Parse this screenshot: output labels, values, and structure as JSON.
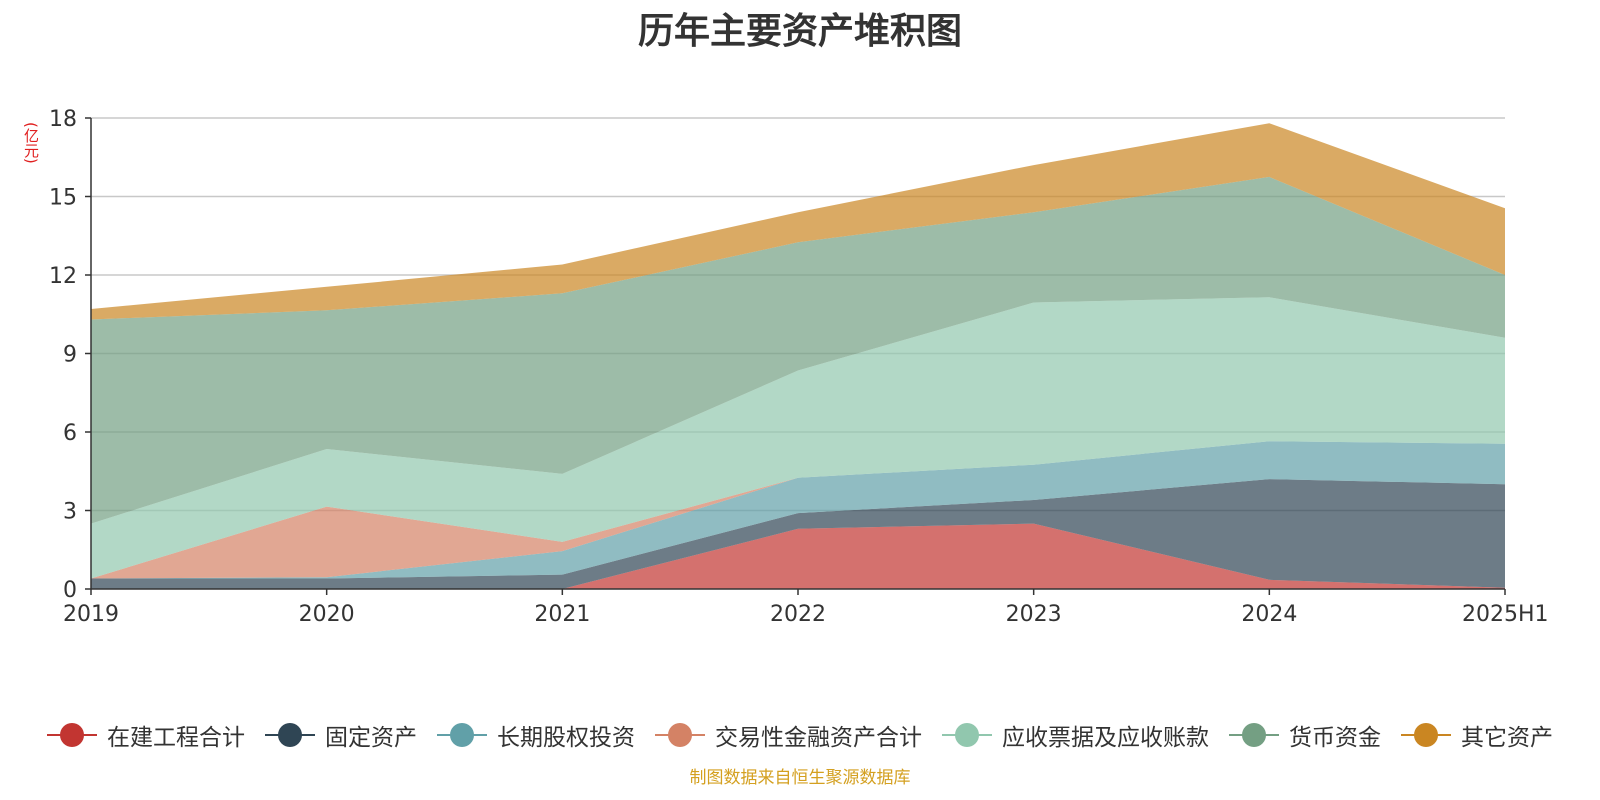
{
  "chart_data": {
    "type": "area",
    "stacked": true,
    "title": "历年主要资产堆积图",
    "unit_label": "(亿元)",
    "categories": [
      "2019",
      "2020",
      "2021",
      "2022",
      "2023",
      "2024",
      "2025H1"
    ],
    "ylim": [
      0,
      18
    ],
    "yticks": [
      0,
      3,
      6,
      9,
      12,
      15,
      18
    ],
    "grid": true,
    "legend_position": "bottom",
    "series": [
      {
        "name": "在建工程合计",
        "color": "#c23531",
        "values": [
          0.0,
          0.0,
          0.0,
          2.3,
          2.5,
          0.35,
          0.05
        ]
      },
      {
        "name": "固定资产",
        "color": "#2f4554",
        "values": [
          0.4,
          0.4,
          0.55,
          0.6,
          0.9,
          3.85,
          3.95
        ]
      },
      {
        "name": "长期股权投资",
        "color": "#61a0a8",
        "values": [
          0.0,
          0.05,
          0.9,
          1.35,
          1.35,
          1.45,
          1.55
        ]
      },
      {
        "name": "交易性金融资产合计",
        "color": "#d48265",
        "values": [
          0.0,
          2.7,
          0.35,
          0.0,
          0.0,
          0.0,
          0.0
        ]
      },
      {
        "name": "应收票据及应收账款",
        "color": "#91c7ae",
        "values": [
          2.1,
          2.2,
          2.6,
          4.1,
          6.2,
          5.5,
          4.05
        ]
      },
      {
        "name": "货币资金",
        "color": "#749f83",
        "values": [
          7.8,
          5.3,
          6.9,
          4.9,
          3.45,
          4.6,
          2.4
        ]
      },
      {
        "name": "其它资产",
        "color": "#ca8622",
        "values": [
          0.4,
          0.9,
          1.1,
          1.15,
          1.8,
          2.05,
          2.55
        ]
      }
    ]
  },
  "footer": {
    "source": "制图数据来自恒生聚源数据库"
  }
}
